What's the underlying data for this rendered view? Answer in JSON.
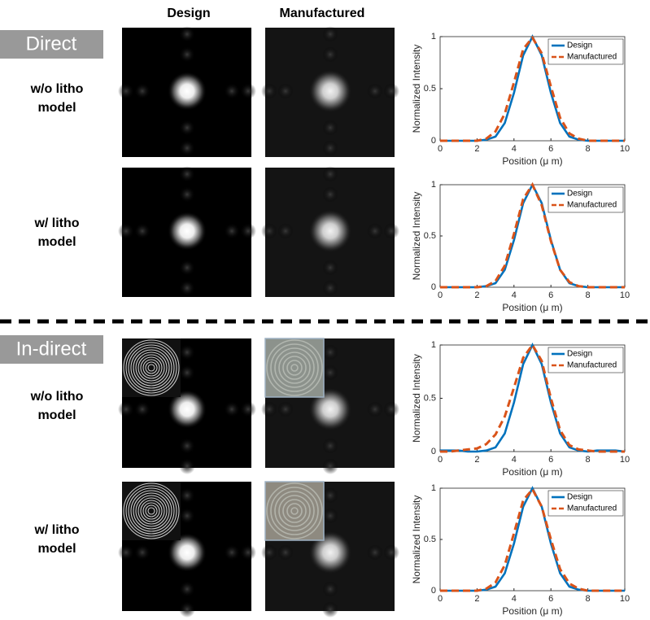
{
  "columns": [
    "Design",
    "Manufactured"
  ],
  "sections": [
    {
      "label": "Direct",
      "rows": [
        [
          "w/o litho",
          "model"
        ],
        [
          "w/ litho",
          "model"
        ]
      ]
    },
    {
      "label": "In-direct",
      "rows": [
        [
          "w/o litho",
          "model"
        ],
        [
          "w/ litho",
          "model"
        ]
      ]
    }
  ],
  "chart_data": [
    {
      "type": "line",
      "xlabel": "Position (μ m)",
      "ylabel": "Normalized Intensity",
      "x": [
        0,
        0.5,
        1,
        1.5,
        2,
        2.5,
        3,
        3.5,
        4,
        4.5,
        5,
        5.5,
        6,
        6.5,
        7,
        7.5,
        8,
        8.5,
        9,
        9.5,
        10
      ],
      "series": [
        {
          "name": "Design",
          "color": "#0072bd",
          "linestyle": "solid",
          "values": [
            0,
            0,
            0,
            0,
            0,
            0.01,
            0.04,
            0.17,
            0.46,
            0.82,
            1,
            0.82,
            0.46,
            0.17,
            0.04,
            0.01,
            0,
            0,
            0,
            0,
            0
          ]
        },
        {
          "name": "Manufactured",
          "color": "#d95319",
          "linestyle": "dashed",
          "values": [
            0,
            0,
            0,
            0,
            0,
            0.02,
            0.09,
            0.26,
            0.56,
            0.88,
            0.99,
            0.84,
            0.52,
            0.22,
            0.07,
            0.02,
            0,
            0,
            0,
            0,
            0
          ]
        }
      ],
      "xlim": [
        0,
        10
      ],
      "ylim": [
        0,
        1
      ],
      "xticks": [
        0,
        2,
        4,
        6,
        8,
        10
      ],
      "yticks": [
        0,
        0.5,
        1
      ],
      "legend": "upper right"
    },
    {
      "type": "line",
      "xlabel": "Position (μ m)",
      "ylabel": "Normalized Intensity",
      "x": [
        0,
        0.5,
        1,
        1.5,
        2,
        2.5,
        3,
        3.5,
        4,
        4.5,
        5,
        5.5,
        6,
        6.5,
        7,
        7.5,
        8,
        8.5,
        9,
        9.5,
        10
      ],
      "series": [
        {
          "name": "Design",
          "color": "#0072bd",
          "linestyle": "solid",
          "values": [
            0,
            0,
            0,
            0,
            0,
            0.01,
            0.04,
            0.17,
            0.46,
            0.82,
            1,
            0.82,
            0.46,
            0.17,
            0.04,
            0.01,
            0,
            0,
            0,
            0,
            0
          ]
        },
        {
          "name": "Manufactured",
          "color": "#d95319",
          "linestyle": "dashed",
          "values": [
            0,
            0,
            0,
            0,
            0,
            0.01,
            0.06,
            0.21,
            0.52,
            0.86,
            1,
            0.8,
            0.45,
            0.17,
            0.05,
            0.01,
            0,
            0,
            0,
            0,
            0
          ]
        }
      ],
      "xlim": [
        0,
        10
      ],
      "ylim": [
        0,
        1
      ],
      "xticks": [
        0,
        2,
        4,
        6,
        8,
        10
      ],
      "yticks": [
        0,
        0.5,
        1
      ],
      "legend": "upper right"
    },
    {
      "type": "line",
      "xlabel": "Position (μ m)",
      "ylabel": "Normalized Intensity",
      "x": [
        0,
        0.5,
        1,
        1.5,
        2,
        2.5,
        3,
        3.5,
        4,
        4.5,
        5,
        5.5,
        6,
        6.5,
        7,
        7.5,
        8,
        8.5,
        9,
        9.5,
        10
      ],
      "series": [
        {
          "name": "Design",
          "color": "#0072bd",
          "linestyle": "solid",
          "values": [
            0.01,
            0.01,
            0.01,
            0,
            0,
            0.01,
            0.04,
            0.17,
            0.46,
            0.82,
            1,
            0.82,
            0.46,
            0.17,
            0.04,
            0.01,
            0,
            0.01,
            0.01,
            0.01,
            0
          ]
        },
        {
          "name": "Manufactured",
          "color": "#d95319",
          "linestyle": "dashed",
          "values": [
            0,
            0,
            0.01,
            0.02,
            0.03,
            0.07,
            0.16,
            0.33,
            0.6,
            0.88,
            1,
            0.85,
            0.5,
            0.2,
            0.06,
            0.02,
            0.01,
            0,
            0,
            0,
            0
          ]
        }
      ],
      "xlim": [
        0,
        10
      ],
      "ylim": [
        0,
        1
      ],
      "xticks": [
        0,
        2,
        4,
        6,
        8,
        10
      ],
      "yticks": [
        0,
        0.5,
        1
      ],
      "legend": "upper right"
    },
    {
      "type": "line",
      "xlabel": "Position (μ m)",
      "ylabel": "Normalized Intensity",
      "x": [
        0,
        0.5,
        1,
        1.5,
        2,
        2.5,
        3,
        3.5,
        4,
        4.5,
        5,
        5.5,
        6,
        6.5,
        7,
        7.5,
        8,
        8.5,
        9,
        9.5,
        10
      ],
      "series": [
        {
          "name": "Design",
          "color": "#0072bd",
          "linestyle": "solid",
          "values": [
            0,
            0,
            0,
            0,
            0,
            0.01,
            0.04,
            0.17,
            0.46,
            0.82,
            1,
            0.82,
            0.46,
            0.17,
            0.04,
            0.01,
            0,
            0,
            0,
            0,
            0
          ]
        },
        {
          "name": "Manufactured",
          "color": "#d95319",
          "linestyle": "dashed",
          "values": [
            0,
            0,
            0,
            0,
            0,
            0.02,
            0.08,
            0.25,
            0.56,
            0.88,
            0.99,
            0.82,
            0.5,
            0.21,
            0.07,
            0.02,
            0,
            0,
            0,
            0,
            0
          ]
        }
      ],
      "xlim": [
        0,
        10
      ],
      "ylim": [
        0,
        1
      ],
      "xticks": [
        0,
        2,
        4,
        6,
        8,
        10
      ],
      "yticks": [
        0,
        0.5,
        1
      ],
      "legend": "upper right"
    }
  ]
}
